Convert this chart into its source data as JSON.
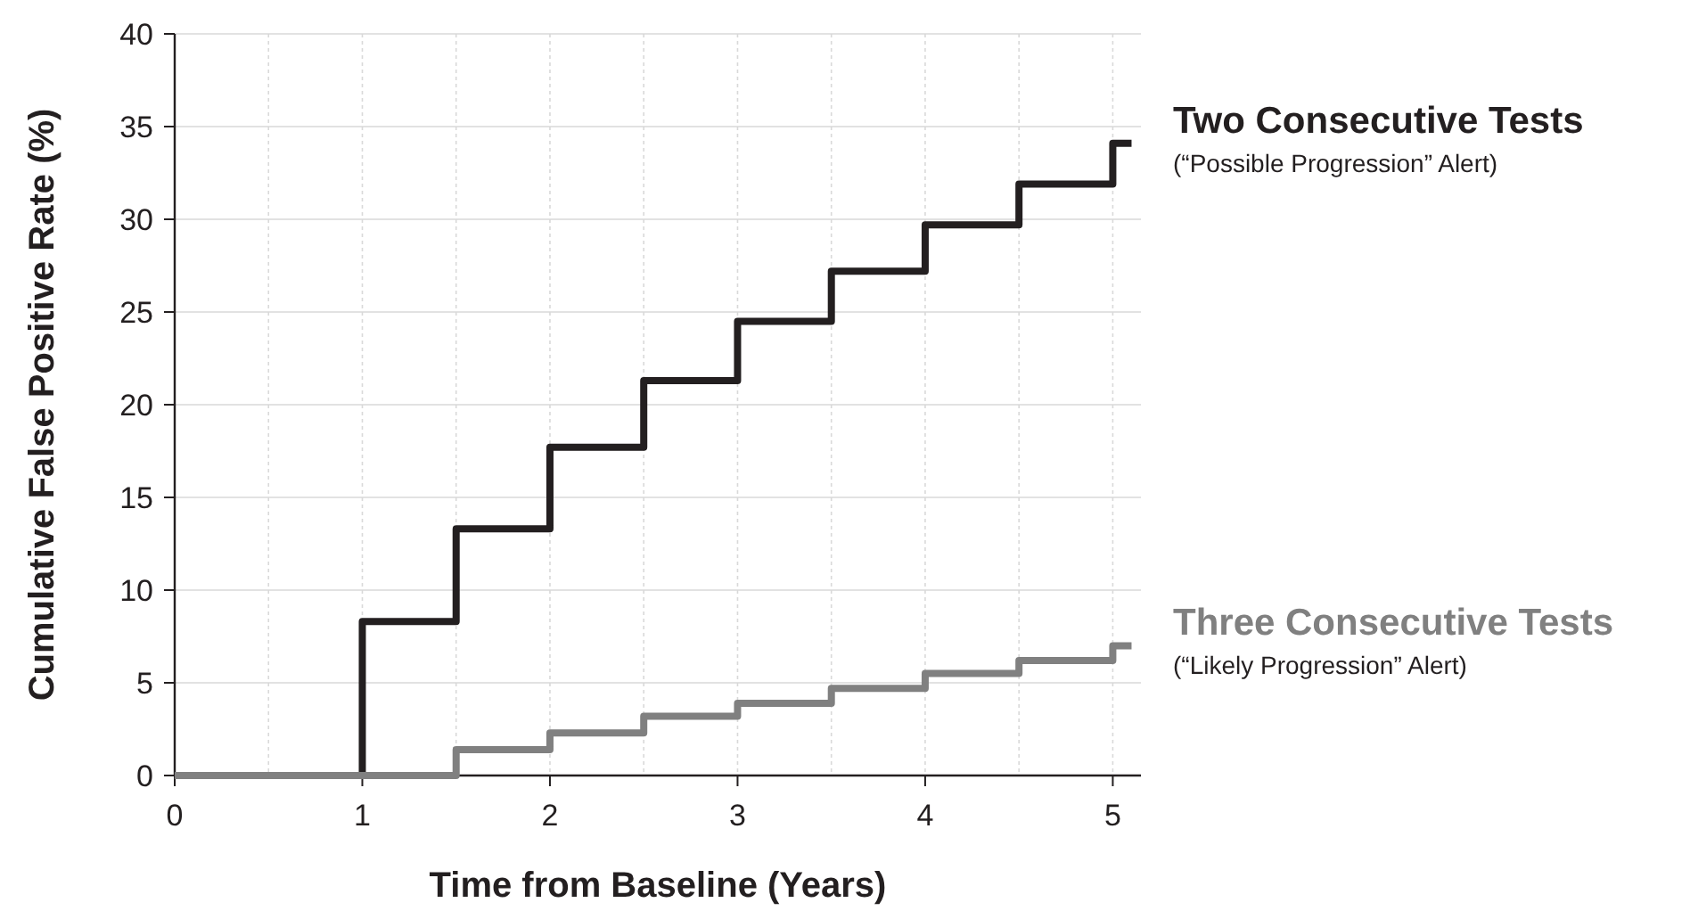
{
  "chart_data": {
    "type": "step",
    "xlabel": "Time from Baseline (Years)",
    "ylabel": "Cumulative False Positive Rate (%)",
    "xlim": [
      0,
      5.15
    ],
    "ylim": [
      0,
      40
    ],
    "xticks": [
      0,
      {
        "value": 0.5,
        "label": null
      },
      1,
      {
        "value": 1.5,
        "label": null
      },
      2,
      {
        "value": 2.5,
        "label": null
      },
      3,
      {
        "value": 3.5,
        "label": null
      },
      4,
      {
        "value": 4.5,
        "label": null
      },
      5
    ],
    "yticks": [
      0,
      5,
      10,
      15,
      20,
      25,
      30,
      35,
      40
    ],
    "grid": true,
    "series": [
      {
        "name": "Two Consecutive Tests",
        "color": "#231f20",
        "x": [
          0,
          1,
          1.5,
          2,
          2.5,
          3,
          3.5,
          4,
          4.5,
          5,
          5.1
        ],
        "values": [
          0,
          8.3,
          13.3,
          17.7,
          21.3,
          24.5,
          27.2,
          29.7,
          31.9,
          34.1,
          34.1
        ]
      },
      {
        "name": "Three Consecutive Tests",
        "color": "#808080",
        "x": [
          0,
          1.5,
          2,
          2.5,
          3,
          3.5,
          4,
          4.5,
          5,
          5.1
        ],
        "values": [
          0,
          1.4,
          2.3,
          3.2,
          3.9,
          4.7,
          5.5,
          6.2,
          7.0,
          7.0
        ]
      }
    ],
    "annotations": [
      "(“Possible Progression” Alert)",
      "(“Likely Progression” Alert)"
    ]
  }
}
